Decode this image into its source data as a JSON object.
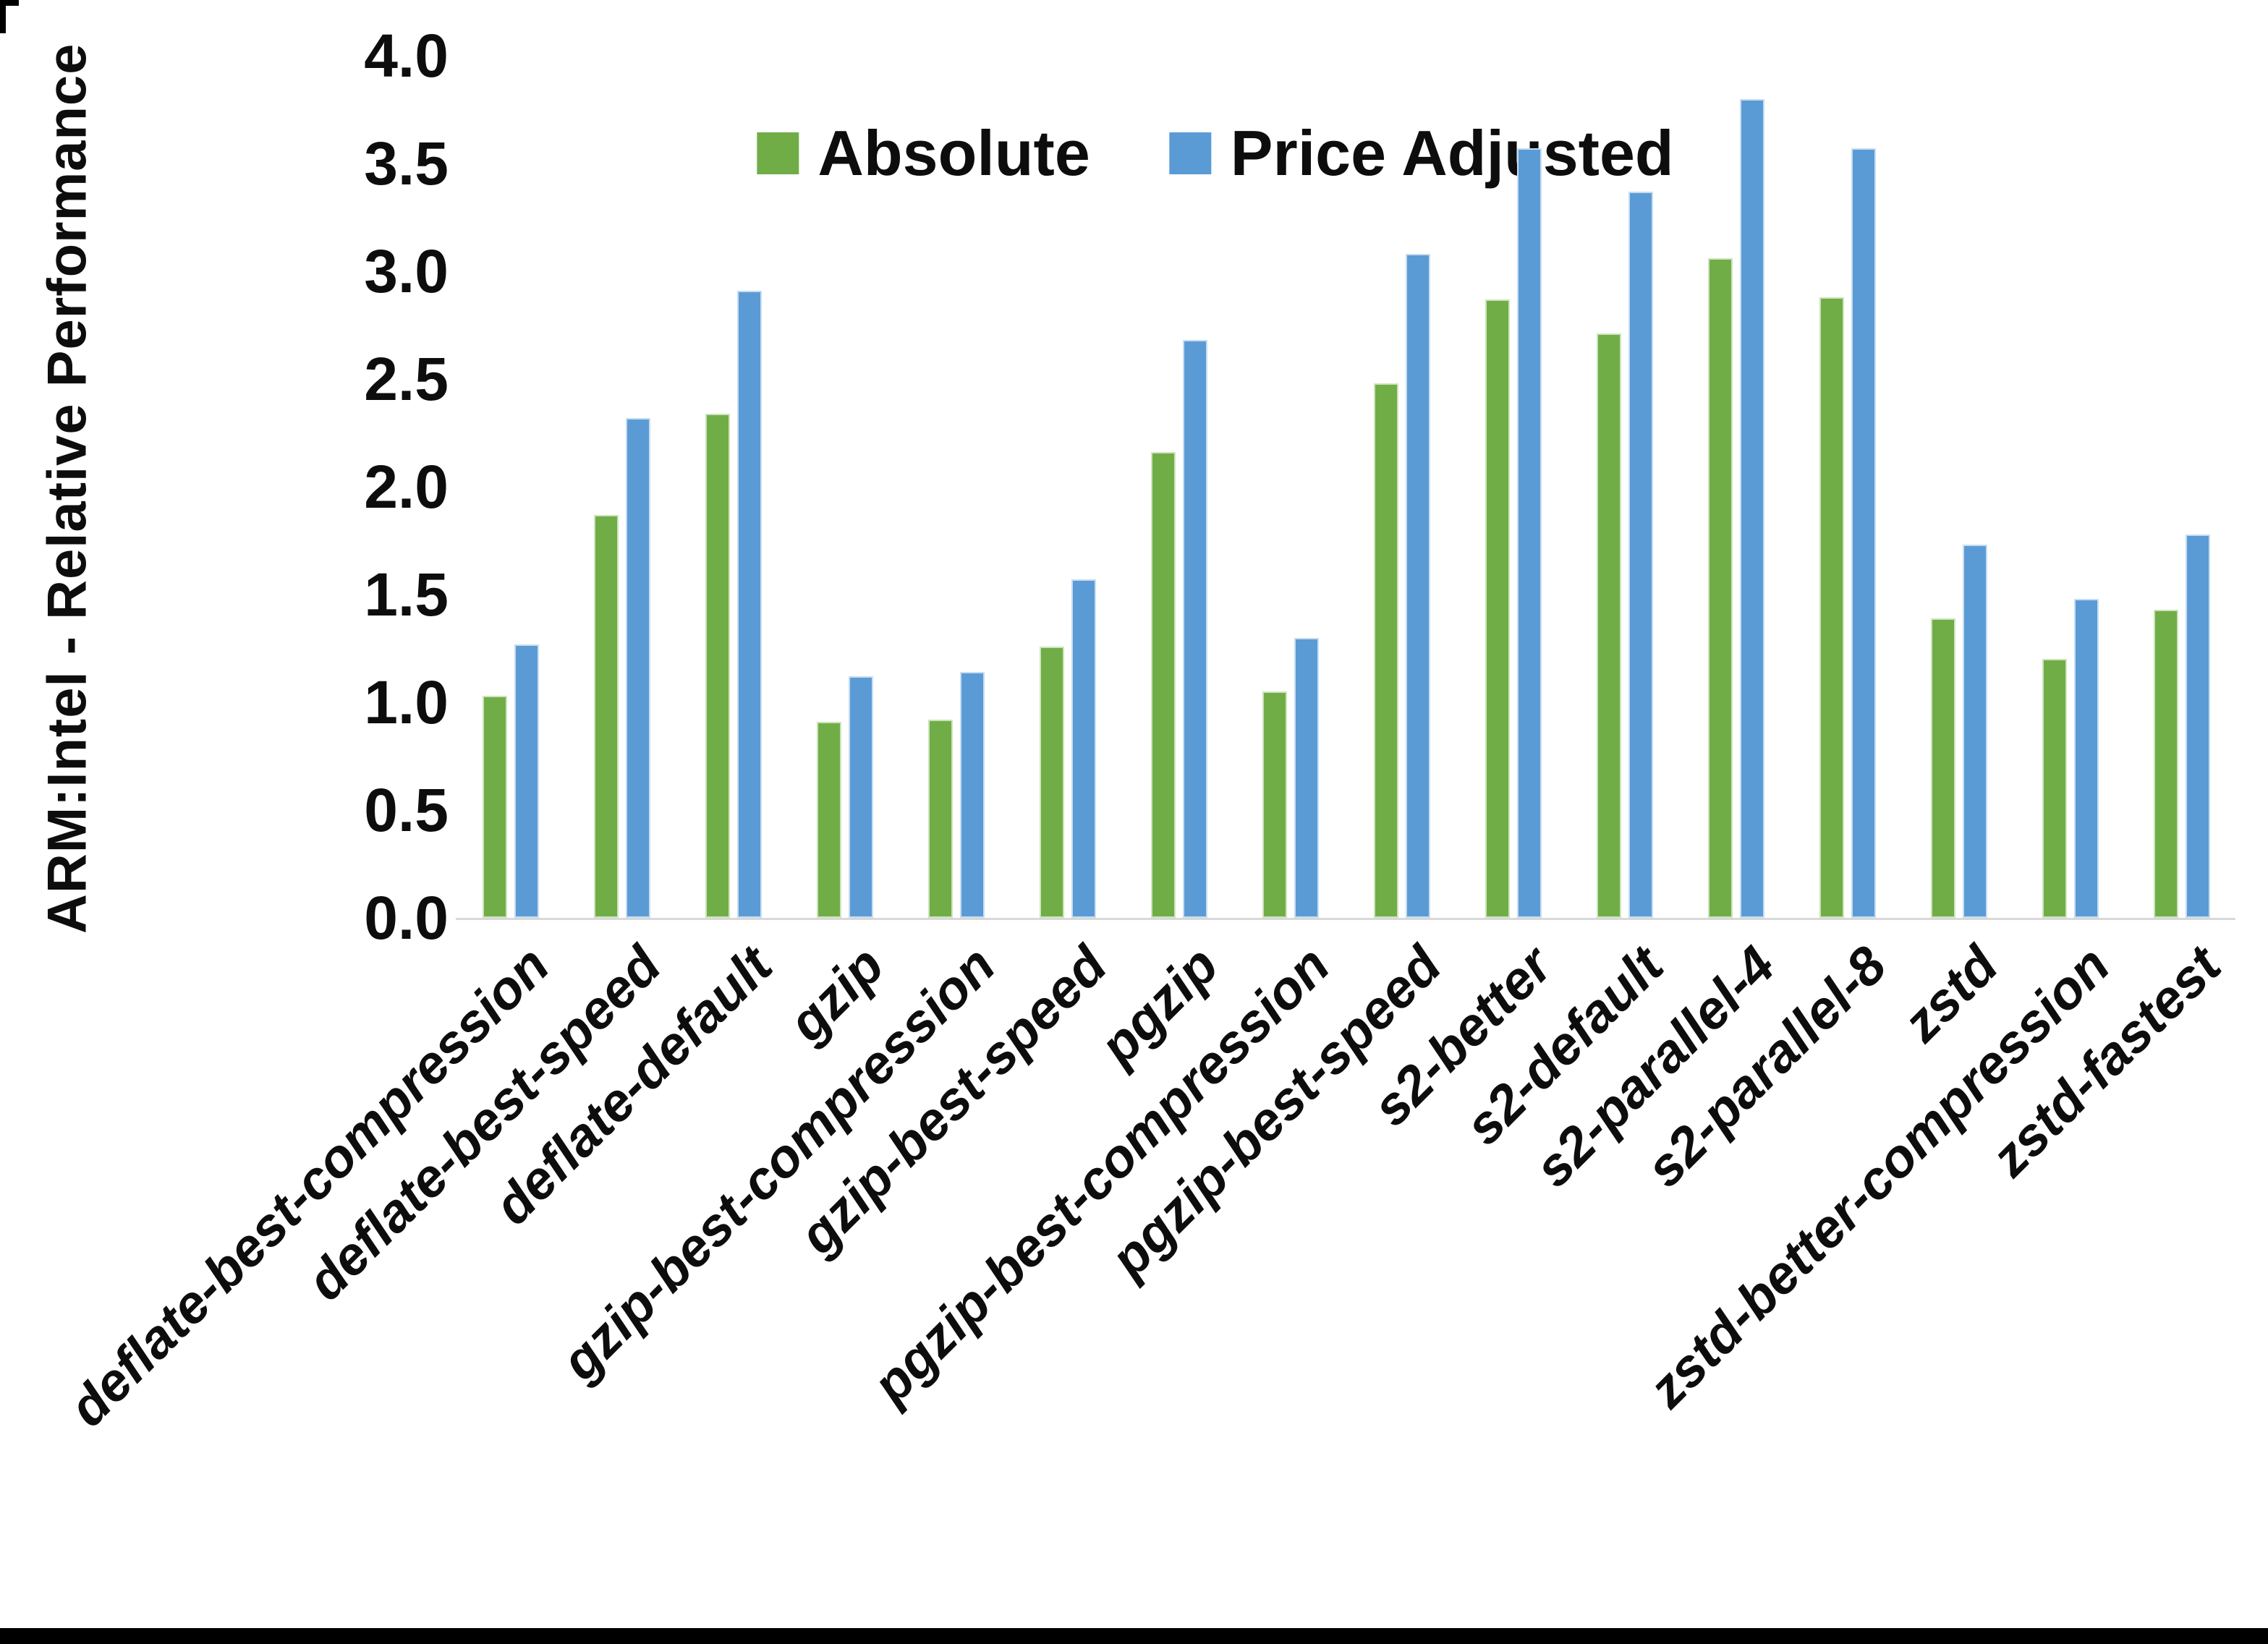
{
  "chart_data": {
    "type": "bar",
    "title": "",
    "xlabel": "",
    "ylabel": "ARM:Intel - Relative Performance",
    "ylim": [
      0.0,
      4.0
    ],
    "ytick_step": 0.5,
    "yticks": [
      "0.0",
      "0.5",
      "1.0",
      "1.5",
      "2.0",
      "2.5",
      "3.0",
      "3.5",
      "4.0"
    ],
    "grid": "off",
    "legend_position": "top-center",
    "categories": [
      "deflate-best-compression",
      "deflate-best-speed",
      "deflate-default",
      "gzip",
      "gzip-best-compression",
      "gzip-best-speed",
      "pgzip",
      "pgzip-best-compression",
      "pgzip-best-speed",
      "s2-better",
      "s2-default",
      "s2-parallel-4",
      "s2-parallel-8",
      "zstd",
      "zstd-better-compression",
      "zstd-fastest"
    ],
    "series": [
      {
        "name": "Absolute",
        "color": "#70AD47",
        "values": [
          1.03,
          1.87,
          2.34,
          0.91,
          0.92,
          1.26,
          2.16,
          1.05,
          2.48,
          2.87,
          2.71,
          3.06,
          2.88,
          1.39,
          1.2,
          1.43
        ]
      },
      {
        "name": "Price Adjusted",
        "color": "#5B9BD5",
        "values": [
          1.27,
          2.32,
          2.91,
          1.12,
          1.14,
          1.57,
          2.68,
          1.3,
          3.08,
          3.57,
          3.37,
          3.8,
          3.57,
          1.73,
          1.48,
          1.78
        ]
      }
    ]
  },
  "colors": {
    "axis_line": "#d9d9d9",
    "text": "#0d0d0d",
    "background": "#ffffff",
    "frame_bar": "#000000"
  }
}
